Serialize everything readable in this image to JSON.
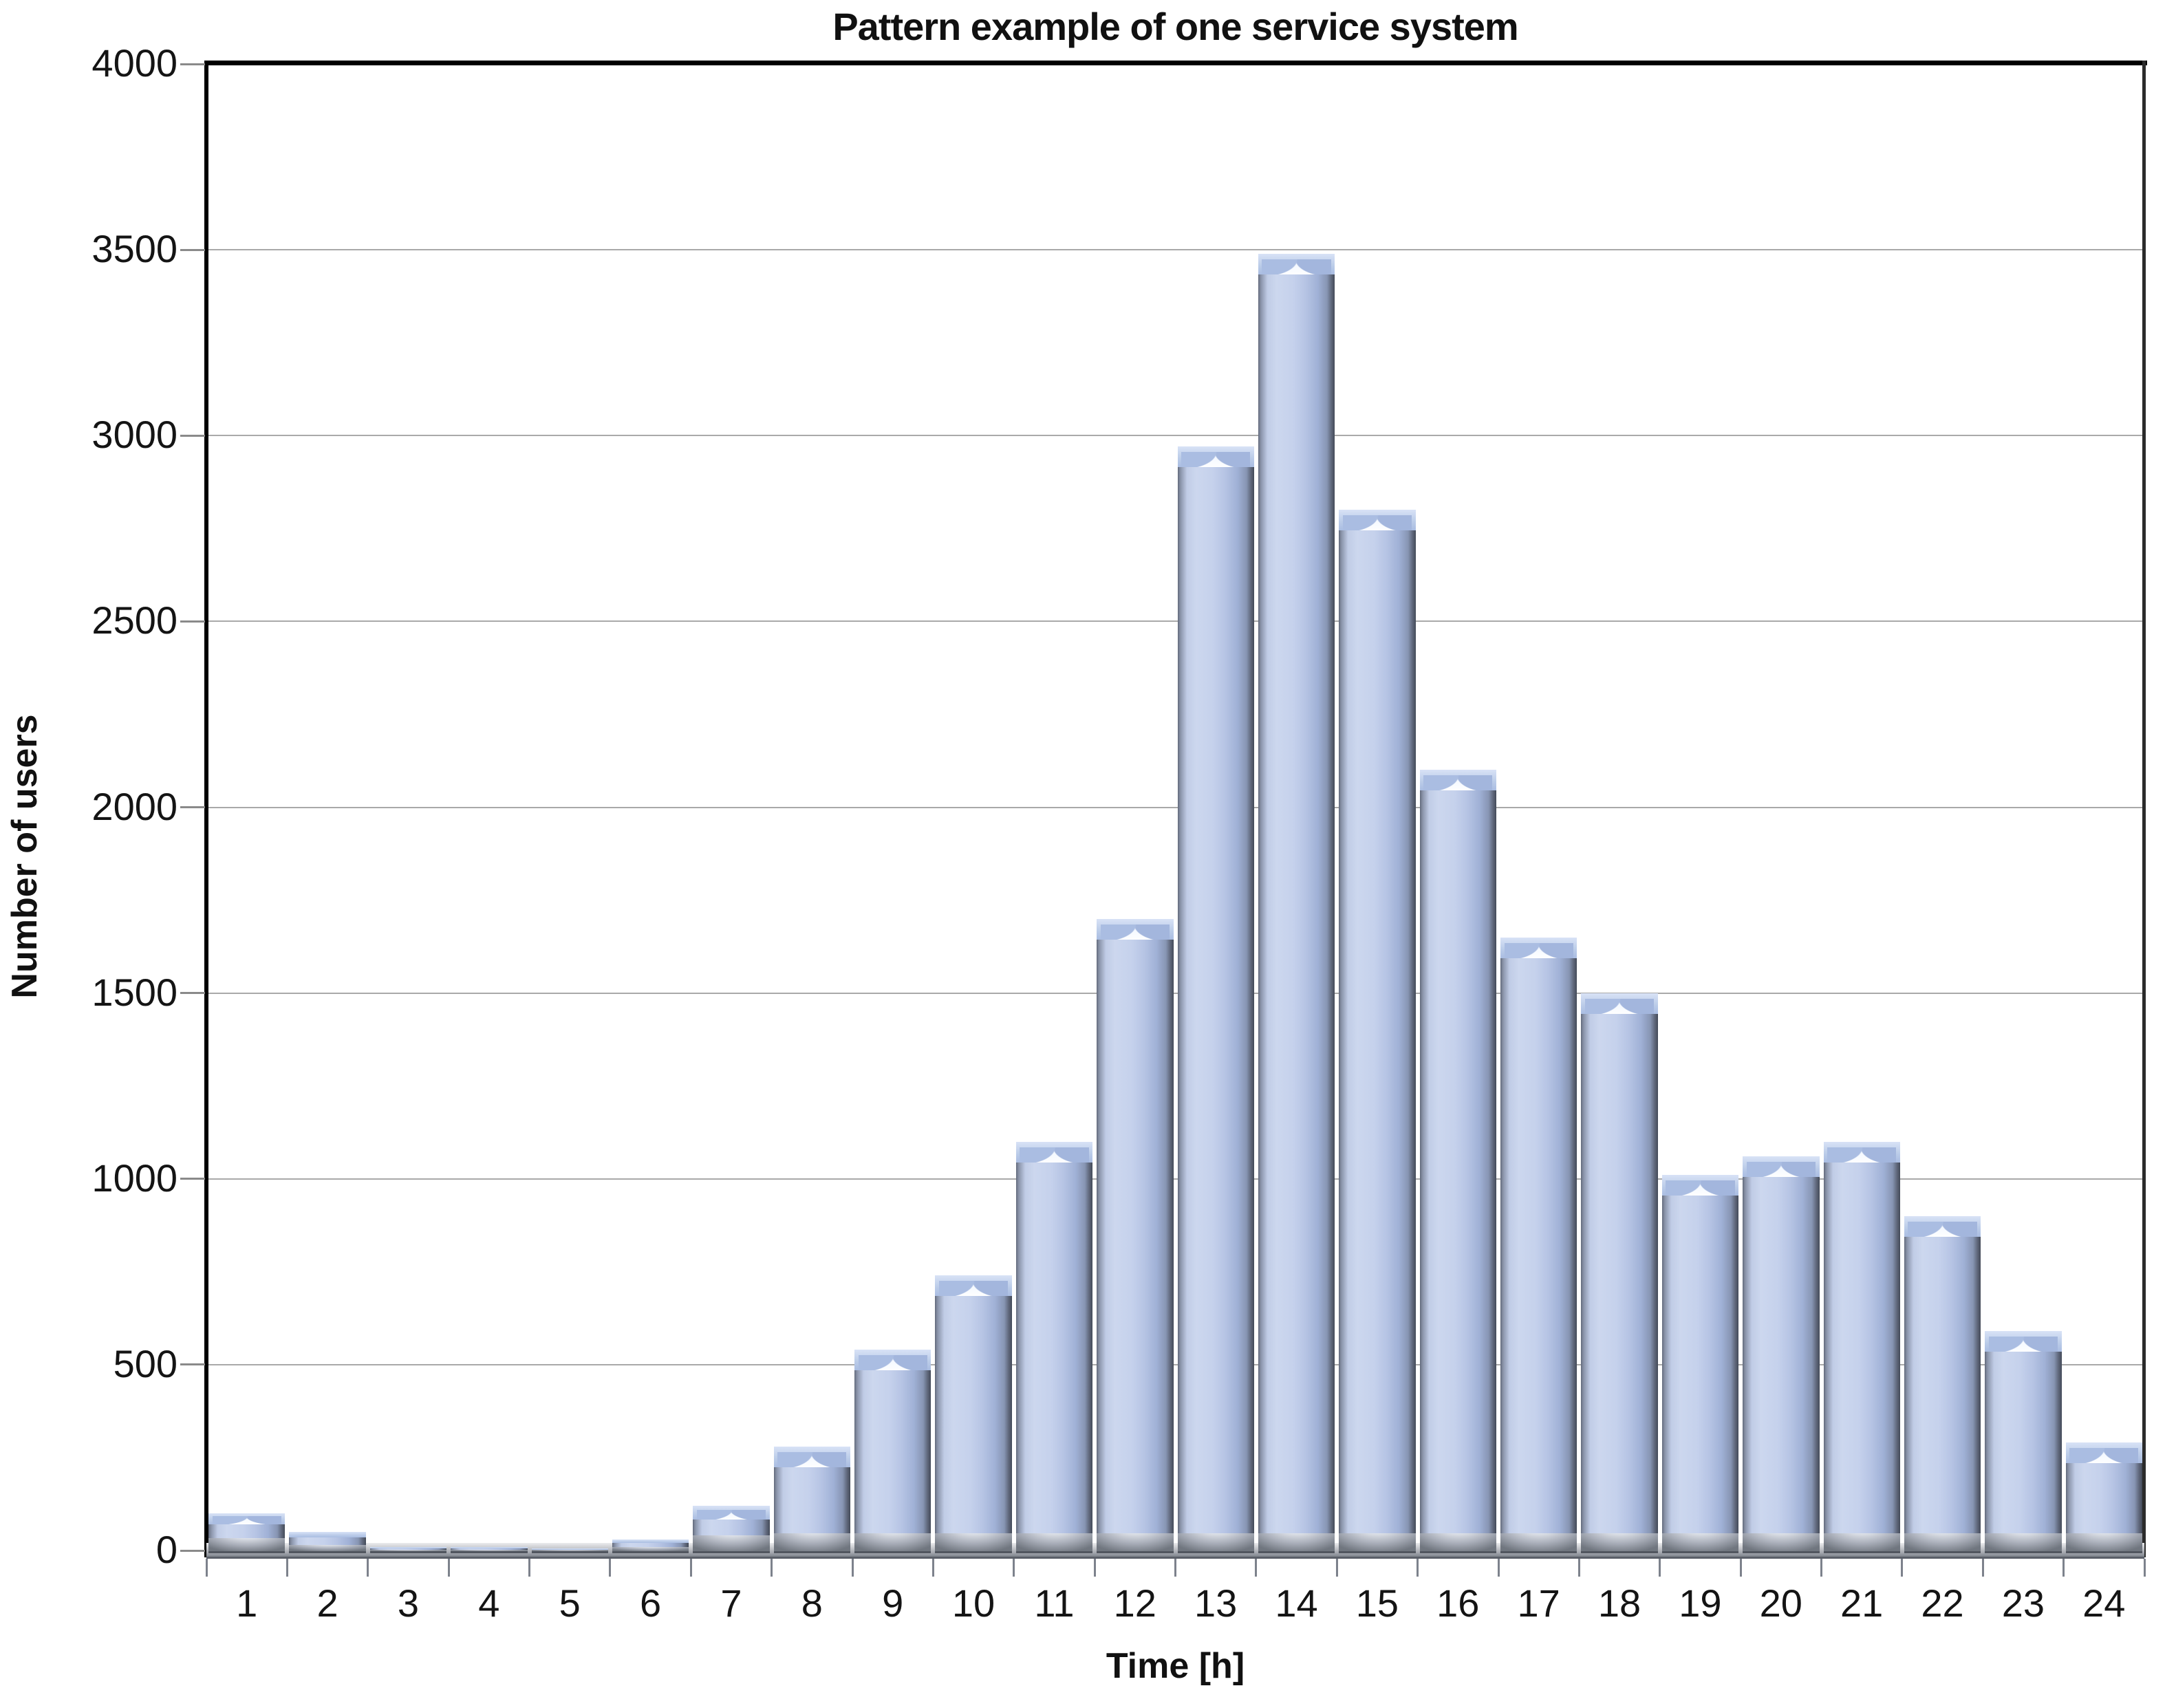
{
  "title": "Pattern example of one service system",
  "chart_data": {
    "type": "bar",
    "title": "Pattern example of one service system",
    "xlabel": "Time [h]",
    "ylabel": "Number of users",
    "categories": [
      "1",
      "2",
      "3",
      "4",
      "5",
      "6",
      "7",
      "8",
      "9",
      "10",
      "11",
      "12",
      "13",
      "14",
      "15",
      "16",
      "17",
      "18",
      "19",
      "20",
      "21",
      "22",
      "23",
      "24"
    ],
    "values": [
      100,
      50,
      10,
      10,
      5,
      30,
      120,
      280,
      540,
      740,
      1100,
      1700,
      2970,
      3490,
      2800,
      2100,
      1650,
      1500,
      1010,
      1060,
      1100,
      900,
      590,
      290
    ],
    "ylim": [
      0,
      4000
    ],
    "yticks": [
      0,
      500,
      1000,
      1500,
      2000,
      2500,
      3000,
      3500,
      4000
    ],
    "grid": "horizontal",
    "legend": "none",
    "bar_style": "3d-beveled-gradient"
  },
  "colors": {
    "background": "#ffffff",
    "bar_body_light": "#ccd7ee",
    "bar_body_mid": "#b6c4e4",
    "bar_edge_dark": "#474e5c",
    "bar_cap_blue": "#aabde2",
    "bar_cap_highlight": "#ffffff",
    "bar_foot_gray": "#aaafba",
    "gridline": "#a9a9a9",
    "axis_line": "#000000",
    "text": "#111111"
  }
}
